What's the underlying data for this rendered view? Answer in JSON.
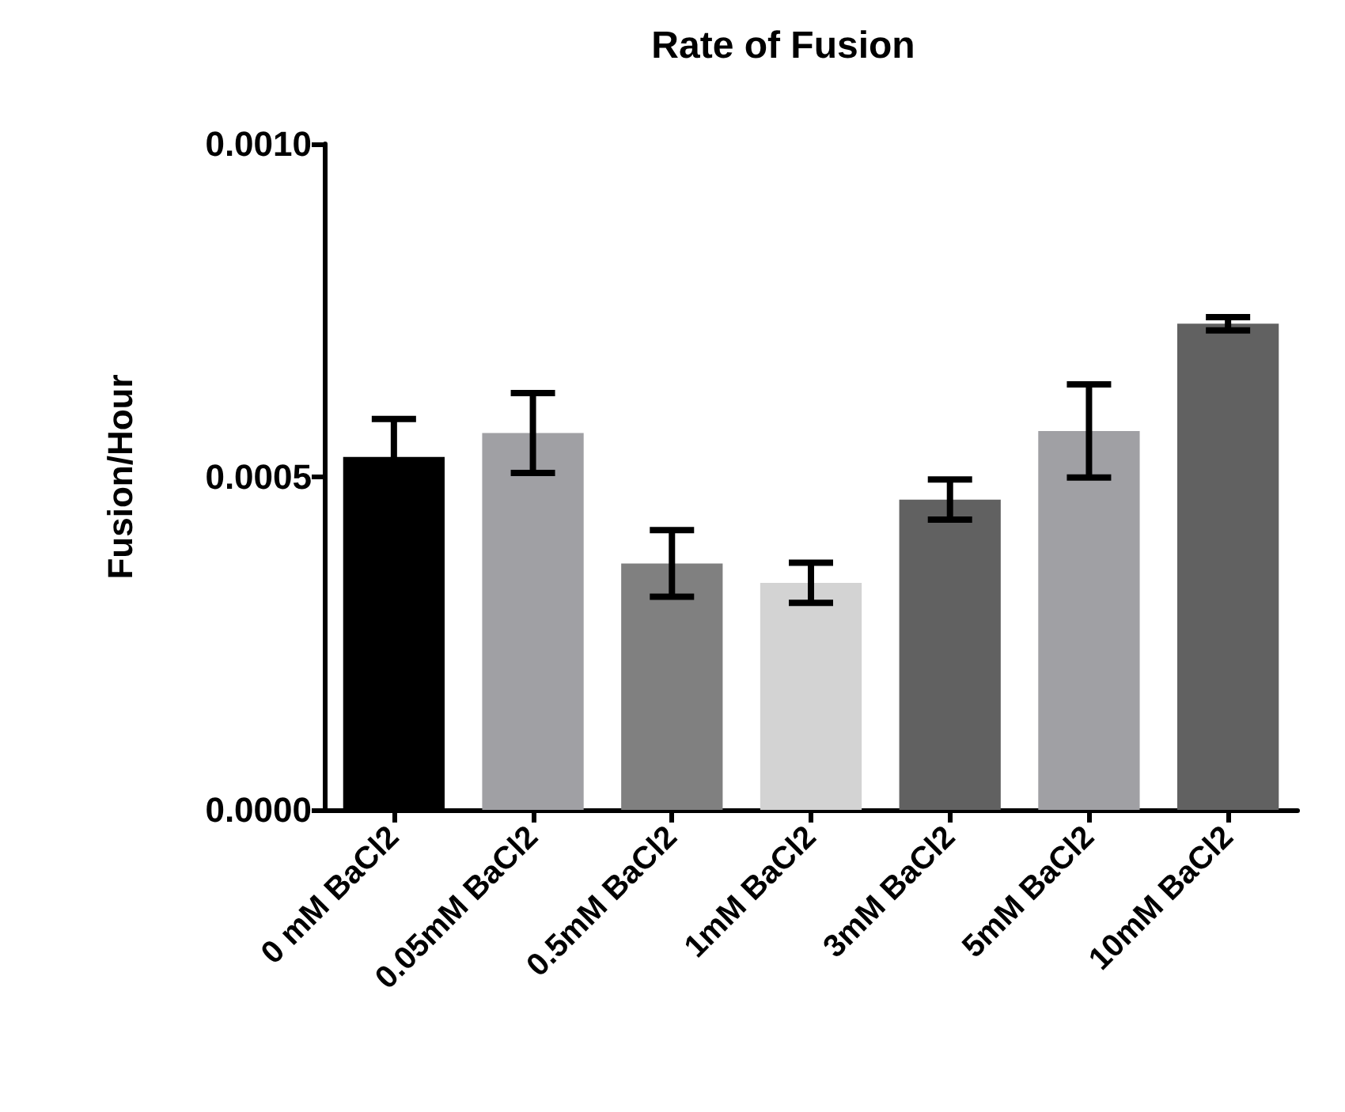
{
  "chart_data": {
    "type": "bar",
    "title": "Rate of Fusion",
    "ylabel": "Fusion/Hour",
    "categories": [
      "0 mM BaCl2",
      "0.05mM BaCl2",
      "0.5mM BaCl2",
      "1mM BaCl2",
      "3mM BaCl2",
      "5mM BaCl2",
      "10mM BaCl2"
    ],
    "values": [
      0.00053,
      0.000566,
      0.00037,
      0.000341,
      0.000466,
      0.000569,
      0.00073
    ],
    "errors": [
      5.7e-05,
      6e-05,
      5e-05,
      3e-05,
      3e-05,
      7e-05,
      1e-05
    ],
    "colors": [
      "#000000",
      "#a0a0a4",
      "#808080",
      "#d3d3d3",
      "#616161",
      "#a0a0a4",
      "#616161"
    ],
    "ylim": [
      0,
      0.001
    ],
    "yticks": [
      {
        "value": 0,
        "label": "0.0000"
      },
      {
        "value": 0.0005,
        "label": "0.0005"
      },
      {
        "value": 0.001,
        "label": "0.0010"
      }
    ]
  }
}
